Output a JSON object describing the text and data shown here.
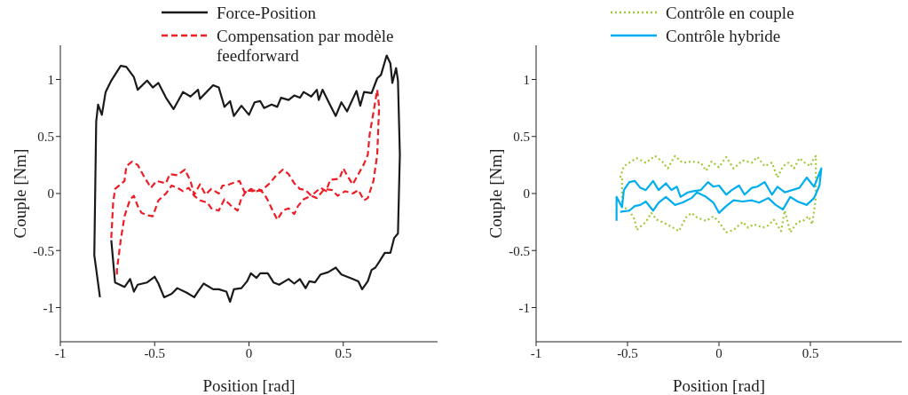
{
  "chart_data": [
    {
      "type": "line",
      "xlabel": "Position [rad]",
      "ylabel": "Couple [Nm]",
      "xlim": [
        -1,
        1
      ],
      "xticks": [
        -1,
        -0.5,
        0,
        0.5
      ],
      "ylim": [
        -1.3,
        1.3
      ],
      "yticks": [
        -1,
        -0.5,
        0,
        0.5,
        1
      ],
      "legend": "top",
      "marker": "none",
      "series": [
        {
          "name": "Force-Position",
          "color": "#1a1a1a",
          "line_style": "solid",
          "x": [
            -0.79,
            -0.82,
            -0.81,
            -0.8,
            -0.78,
            -0.76,
            -0.73,
            -0.68,
            -0.65,
            -0.61,
            -0.59,
            -0.54,
            -0.51,
            -0.48,
            -0.44,
            -0.4,
            -0.35,
            -0.31,
            -0.27,
            -0.26,
            -0.19,
            -0.16,
            -0.13,
            -0.1,
            -0.08,
            -0.04,
            0,
            0.03,
            0.06,
            0.08,
            0.12,
            0.15,
            0.17,
            0.21,
            0.24,
            0.27,
            0.29,
            0.33,
            0.36,
            0.37,
            0.39,
            0.42,
            0.46,
            0.49,
            0.52,
            0.57,
            0.59,
            0.61,
            0.65,
            0.68,
            0.7,
            0.73,
            0.75,
            0.76,
            0.78,
            0.79,
            0.8,
            0.79,
            0.77,
            0.75,
            0.72,
            0.69,
            0.67,
            0.65,
            0.63,
            0.6,
            0.58,
            0.55,
            0.52,
            0.49,
            0.46,
            0.42,
            0.38,
            0.35,
            0.32,
            0.3,
            0.27,
            0.24,
            0.21,
            0.16,
            0.13,
            0.1,
            0.06,
            0.04,
            0.01,
            -0.01,
            -0.04,
            -0.08,
            -0.1,
            -0.12,
            -0.16,
            -0.19,
            -0.24,
            -0.27,
            -0.29,
            -0.33,
            -0.38,
            -0.41,
            -0.45,
            -0.48,
            -0.5,
            -0.54,
            -0.59,
            -0.61,
            -0.63,
            -0.66,
            -0.71,
            -0.73
          ],
          "values": [
            -0.91,
            -0.54,
            0.63,
            0.78,
            0.69,
            0.89,
            0.99,
            1.12,
            1.11,
            1.02,
            0.91,
            0.99,
            0.93,
            0.97,
            0.84,
            0.74,
            0.89,
            0.85,
            0.91,
            0.83,
            0.95,
            0.93,
            0.76,
            0.81,
            0.68,
            0.77,
            0.69,
            0.8,
            0.81,
            0.75,
            0.78,
            0.76,
            0.84,
            0.82,
            0.86,
            0.84,
            0.89,
            0.85,
            0.91,
            0.82,
            0.91,
            0.81,
            0.68,
            0.8,
            0.72,
            0.9,
            0.77,
            0.89,
            0.88,
            1.01,
            1.04,
            1.21,
            1.14,
            0.97,
            1.1,
            0.99,
            0.34,
            -0.35,
            -0.39,
            -0.52,
            -0.52,
            -0.6,
            -0.65,
            -0.67,
            -0.77,
            -0.84,
            -0.77,
            -0.75,
            -0.73,
            -0.71,
            -0.65,
            -0.69,
            -0.71,
            -0.78,
            -0.77,
            -0.83,
            -0.75,
            -0.79,
            -0.75,
            -0.8,
            -0.78,
            -0.7,
            -0.7,
            -0.74,
            -0.7,
            -0.77,
            -0.83,
            -0.84,
            -0.95,
            -0.86,
            -0.84,
            -0.84,
            -0.79,
            -0.86,
            -0.91,
            -0.87,
            -0.83,
            -0.88,
            -0.91,
            -0.79,
            -0.73,
            -0.78,
            -0.8,
            -0.86,
            -0.75,
            -0.82,
            -0.78,
            -0.41
          ]
        },
        {
          "name": "Compensation par modèle feedforward",
          "color": "#ee1c25",
          "line_style": "dashed",
          "x": [
            -0.73,
            -0.72,
            -0.71,
            -0.66,
            -0.65,
            -0.62,
            -0.59,
            -0.56,
            -0.52,
            -0.49,
            -0.44,
            -0.42,
            -0.38,
            -0.34,
            -0.31,
            -0.29,
            -0.26,
            -0.23,
            -0.2,
            -0.16,
            -0.14,
            -0.12,
            -0.09,
            -0.05,
            -0.02,
            0.01,
            0.04,
            0.07,
            0.11,
            0.14,
            0.18,
            0.21,
            0.24,
            0.27,
            0.3,
            0.33,
            0.38,
            0.41,
            0.43,
            0.48,
            0.5,
            0.52,
            0.55,
            0.58,
            0.61,
            0.63,
            0.64,
            0.66,
            0.68,
            0.69,
            0.68,
            0.66,
            0.63,
            0.61,
            0.58,
            0.55,
            0.51,
            0.47,
            0.44,
            0.4,
            0.36,
            0.33,
            0.29,
            0.26,
            0.24,
            0.21,
            0.18,
            0.15,
            0.12,
            0.1,
            0.08,
            0.05,
            0.02,
            -0.01,
            -0.04,
            -0.06,
            -0.1,
            -0.13,
            -0.16,
            -0.2,
            -0.22,
            -0.26,
            -0.29,
            -0.32,
            -0.35,
            -0.38,
            -0.41,
            -0.44,
            -0.48,
            -0.51,
            -0.54,
            -0.57,
            -0.59,
            -0.61,
            -0.63,
            -0.66,
            -0.68,
            -0.7,
            -0.7
          ],
          "values": [
            -0.39,
            -0.08,
            0.04,
            0.11,
            0.24,
            0.28,
            0.25,
            0.16,
            0.05,
            0.11,
            0.09,
            0.17,
            0.16,
            0.21,
            0.11,
            -0.01,
            0.08,
            -0.01,
            0.04,
            0,
            0.07,
            0.07,
            0.09,
            0.11,
            0,
            0.04,
            0.02,
            0.03,
            0.09,
            0.15,
            0.21,
            0.17,
            0.09,
            0.04,
            0.03,
            -0.02,
            0.05,
            0.02,
            0.12,
            0.13,
            0.22,
            0.16,
            0.08,
            0.17,
            0.26,
            0.34,
            0.52,
            0.71,
            0.91,
            0.76,
            0.34,
            0.11,
            -0.04,
            -0.06,
            0.03,
            0,
            0.02,
            -0.02,
            0.03,
            0.04,
            -0.04,
            -0.02,
            -0.05,
            -0.11,
            -0.18,
            -0.13,
            -0.15,
            -0.23,
            -0.13,
            -0.06,
            0,
            0.04,
            0.02,
            0.03,
            -0.04,
            -0.15,
            -0.1,
            -0.05,
            -0.15,
            -0.13,
            -0.08,
            -0.06,
            -0.02,
            0.05,
            0.02,
            0.05,
            0.07,
            0,
            -0.06,
            -0.2,
            -0.19,
            -0.17,
            -0.11,
            -0.02,
            -0.05,
            -0.2,
            -0.41,
            -0.67,
            -0.73
          ]
        }
      ]
    },
    {
      "type": "line",
      "xlabel": "Position [rad]",
      "ylabel": "Couple [Nm]",
      "xlim": [
        -1,
        1
      ],
      "xticks": [
        -1,
        -0.5,
        0,
        0.5
      ],
      "ylim": [
        -1.3,
        1.3
      ],
      "yticks": [
        -1,
        -0.5,
        0,
        0.5,
        1
      ],
      "legend": "top",
      "marker": "none",
      "series": [
        {
          "name": "Contrôle en couple",
          "color": "#a2c83a",
          "line_style": "dotted",
          "x": [
            -0.54,
            -0.52,
            -0.49,
            -0.45,
            -0.4,
            -0.35,
            -0.31,
            -0.28,
            -0.24,
            -0.2,
            -0.15,
            -0.1,
            -0.07,
            -0.04,
            0,
            0.04,
            0.08,
            0.13,
            0.18,
            0.21,
            0.25,
            0.29,
            0.32,
            0.35,
            0.38,
            0.41,
            0.44,
            0.47,
            0.5,
            0.52,
            0.53,
            0.53,
            0.51,
            0.49,
            0.46,
            0.43,
            0.39,
            0.36,
            0.34,
            0.3,
            0.27,
            0.24,
            0.19,
            0.16,
            0.13,
            0.08,
            0.04,
            0,
            -0.03,
            -0.07,
            -0.12,
            -0.15,
            -0.18,
            -0.22,
            -0.26,
            -0.31,
            -0.34,
            -0.37,
            -0.4,
            -0.45,
            -0.46,
            -0.49,
            -0.53,
            -0.53
          ],
          "values": [
            0.14,
            0.24,
            0.27,
            0.31,
            0.27,
            0.33,
            0.28,
            0.22,
            0.33,
            0.27,
            0.28,
            0.27,
            0.2,
            0.28,
            0.23,
            0.32,
            0.22,
            0.29,
            0.27,
            0.32,
            0.24,
            0.27,
            0.14,
            0.24,
            0.27,
            0.22,
            0.31,
            0.27,
            0.24,
            0.31,
            0.33,
            -0.04,
            -0.27,
            -0.2,
            -0.24,
            -0.25,
            -0.34,
            -0.15,
            -0.33,
            -0.23,
            -0.28,
            -0.3,
            -0.27,
            -0.3,
            -0.25,
            -0.32,
            -0.34,
            -0.25,
            -0.2,
            -0.24,
            -0.21,
            -0.17,
            -0.21,
            -0.33,
            -0.29,
            -0.25,
            -0.23,
            -0.17,
            -0.25,
            -0.32,
            -0.23,
            -0.15,
            -0.11,
            0.14
          ]
        },
        {
          "name": "Contrôle hybride",
          "color": "#00aeef",
          "line_style": "solid",
          "x": [
            -0.56,
            -0.56,
            -0.53,
            -0.52,
            -0.49,
            -0.46,
            -0.43,
            -0.4,
            -0.36,
            -0.33,
            -0.29,
            -0.26,
            -0.23,
            -0.21,
            -0.17,
            -0.14,
            -0.1,
            -0.06,
            -0.03,
            0,
            0.04,
            0.07,
            0.11,
            0.14,
            0.18,
            0.21,
            0.25,
            0.29,
            0.32,
            0.36,
            0.4,
            0.44,
            0.48,
            0.52,
            0.56,
            0.55,
            0.52,
            0.48,
            0.43,
            0.39,
            0.35,
            0.31,
            0.27,
            0.22,
            0.18,
            0.13,
            0.08,
            0.04,
            0,
            -0.03,
            -0.07,
            -0.12,
            -0.15,
            -0.2,
            -0.24,
            -0.29,
            -0.33,
            -0.36,
            -0.4,
            -0.43,
            -0.46,
            -0.49,
            -0.54
          ],
          "values": [
            -0.24,
            -0.03,
            -0.12,
            0.03,
            0.1,
            0.11,
            0.05,
            0.03,
            0.11,
            0.03,
            0.09,
            0.03,
            0.06,
            -0.03,
            0.01,
            0.02,
            0.03,
            0.1,
            0.06,
            0.07,
            -0.01,
            0.03,
            0.07,
            -0.01,
            0.05,
            0.06,
            0.1,
            -0.01,
            0.06,
            0.01,
            0.03,
            0.05,
            0.14,
            0.06,
            0.22,
            0.07,
            -0.04,
            -0.1,
            -0.07,
            -0.03,
            -0.14,
            -0.1,
            -0.04,
            -0.08,
            -0.06,
            -0.07,
            -0.06,
            -0.11,
            -0.17,
            -0.08,
            -0.03,
            0.01,
            -0.04,
            -0.08,
            -0.1,
            -0.03,
            -0.08,
            -0.15,
            -0.07,
            -0.1,
            -0.11,
            -0.15,
            -0.16
          ]
        }
      ]
    }
  ]
}
